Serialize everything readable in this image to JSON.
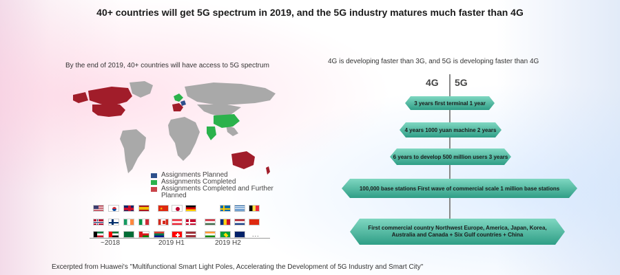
{
  "title": "40+ countries will get 5G spectrum in 2019, and the 5G industry matures much faster than 4G",
  "left_panel": {
    "subtitle": "By the end of 2019, 40+ countries will have access to 5G spectrum",
    "legend": [
      {
        "label": "Assignments Planned",
        "color": "#2d4f8c"
      },
      {
        "label": "Assignments Completed",
        "color": "#2bb24c"
      },
      {
        "label": "Assignments Completed and Further Planned",
        "color": "#c9444a"
      }
    ],
    "timeline": {
      "labels": [
        "~2018",
        "2019 H1",
        "2019 H2"
      ],
      "more": "..."
    }
  },
  "right_panel": {
    "subtitle": "4G is developing faster than 3G, and 5G is developing faster than 4G",
    "col_4g": "4G",
    "col_5g": "5G",
    "milestones": [
      {
        "text": "3 years first terminal 1 year"
      },
      {
        "text": "4 years 1000 yuan machine 2 years"
      },
      {
        "text": "6 years to develop 500 million users 3 years"
      },
      {
        "text": "100,000 base stations First wave of commercial scale 1 million base stations"
      },
      {
        "line1": "First commercial country Northwest Europe, America, Japan, Korea,",
        "line2": "Australia and Canada + Six Gulf countries + China"
      }
    ]
  },
  "footer": "Excerpted from Huawei's \"Multifunctional Smart Light Poles, Accelerating the Development of 5G Industry and Smart City\""
}
